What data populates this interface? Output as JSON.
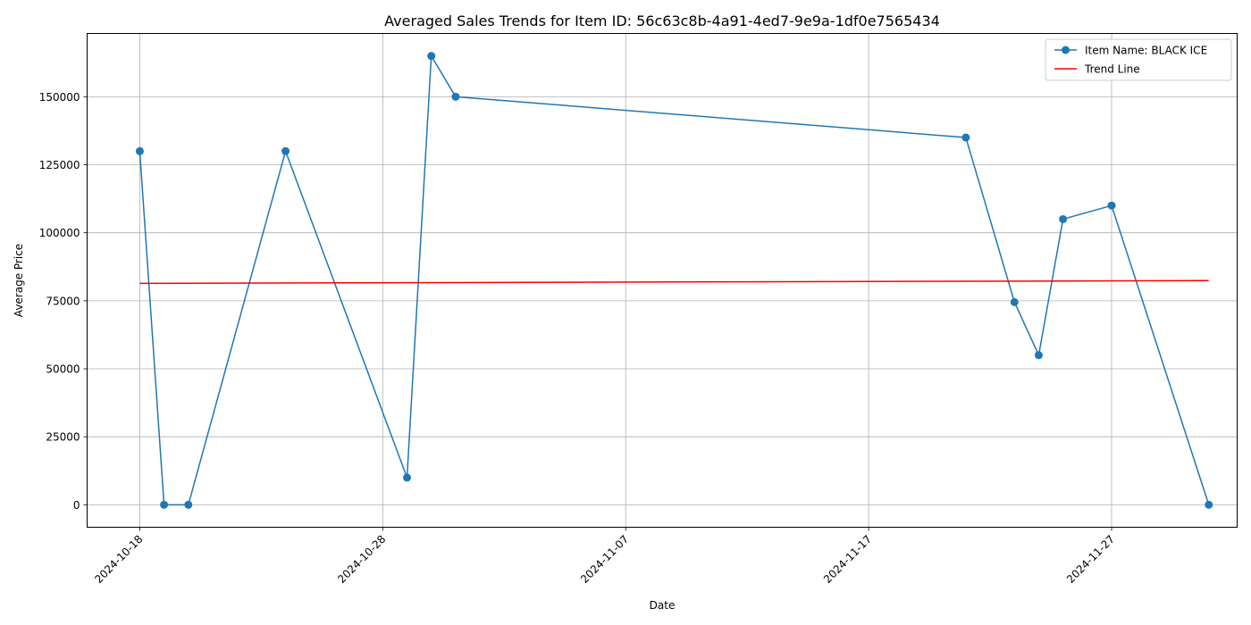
{
  "chart_data": {
    "type": "line",
    "title": "Averaged Sales Trends for Item ID: 56c63c8b-4a91-4ed7-9e9a-1df0e7565434",
    "xlabel": "Date",
    "ylabel": "Average Price",
    "x_ticks": [
      "2024-10-18",
      "2024-10-28",
      "2024-11-07",
      "2024-11-17",
      "2024-11-27"
    ],
    "y_ticks": [
      0,
      25000,
      50000,
      75000,
      100000,
      125000,
      150000
    ],
    "xlim": [
      "2024-10-15T20:00",
      "2024-12-02T04:00"
    ],
    "ylim": [
      -8250,
      173250
    ],
    "grid": true,
    "legend_position": "top-right",
    "series": [
      {
        "name": "Item Name: BLACK ICE",
        "color": "#1f77b4",
        "marker": "circle",
        "points": [
          {
            "x": "2024-10-18",
            "y": 130000
          },
          {
            "x": "2024-10-19",
            "y": 0
          },
          {
            "x": "2024-10-20",
            "y": 0
          },
          {
            "x": "2024-10-24",
            "y": 130000
          },
          {
            "x": "2024-10-29",
            "y": 10000
          },
          {
            "x": "2024-10-30",
            "y": 165000
          },
          {
            "x": "2024-10-31",
            "y": 150000
          },
          {
            "x": "2024-11-21",
            "y": 135000
          },
          {
            "x": "2024-11-23",
            "y": 74500
          },
          {
            "x": "2024-11-24",
            "y": 55000
          },
          {
            "x": "2024-11-25",
            "y": 105000
          },
          {
            "x": "2024-11-27",
            "y": 110000
          },
          {
            "x": "2024-12-01",
            "y": 0
          }
        ]
      },
      {
        "name": "Trend Line",
        "color": "#ff0000",
        "marker": "none",
        "points": [
          {
            "x": "2024-10-18",
            "y": 81400
          },
          {
            "x": "2024-12-01",
            "y": 82400
          }
        ]
      }
    ]
  }
}
